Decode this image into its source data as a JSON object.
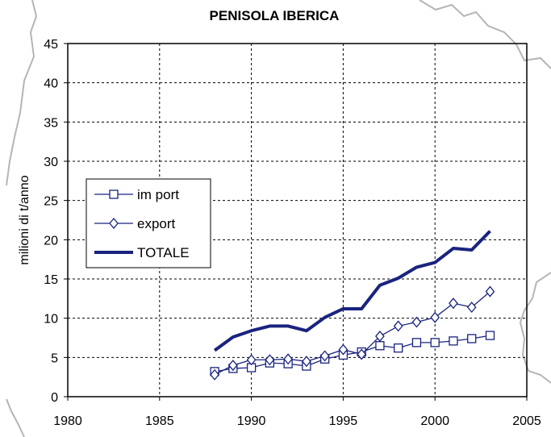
{
  "chart_data": {
    "type": "line",
    "title": "PENISOLA IBERICA",
    "xlabel": "",
    "ylabel": "milioni di t/anno",
    "xlim": [
      1980,
      2005
    ],
    "ylim": [
      0,
      45
    ],
    "xticks": [
      1980,
      1985,
      1990,
      1995,
      2000,
      2005
    ],
    "yticks": [
      0,
      5,
      10,
      15,
      20,
      25,
      30,
      35,
      40,
      45
    ],
    "grid": true,
    "legend_position": "left",
    "x": [
      1988,
      1989,
      1990,
      1991,
      1992,
      1993,
      1994,
      1995,
      1996,
      1997,
      1998,
      1999,
      2000,
      2001,
      2002,
      2003
    ],
    "series": [
      {
        "name": "im port",
        "marker": "square",
        "color": "#1a237e",
        "values": [
          3.2,
          3.6,
          3.7,
          4.3,
          4.2,
          3.9,
          4.8,
          5.3,
          5.7,
          6.5,
          6.2,
          6.9,
          6.9,
          7.1,
          7.4,
          7.8
        ]
      },
      {
        "name": "export",
        "marker": "diamond",
        "color": "#1a237e",
        "values": [
          2.8,
          4.0,
          4.7,
          4.7,
          4.8,
          4.5,
          5.2,
          6.0,
          5.4,
          7.7,
          9.0,
          9.5,
          10.1,
          11.9,
          11.4,
          13.4
        ]
      },
      {
        "name": "TOTALE",
        "marker": "none",
        "color": "#1a237e",
        "values": [
          5.9,
          7.6,
          8.4,
          9.0,
          9.0,
          8.4,
          10.1,
          11.2,
          11.2,
          14.2,
          15.1,
          16.5,
          17.1,
          18.9,
          18.7,
          21.1
        ]
      }
    ]
  }
}
